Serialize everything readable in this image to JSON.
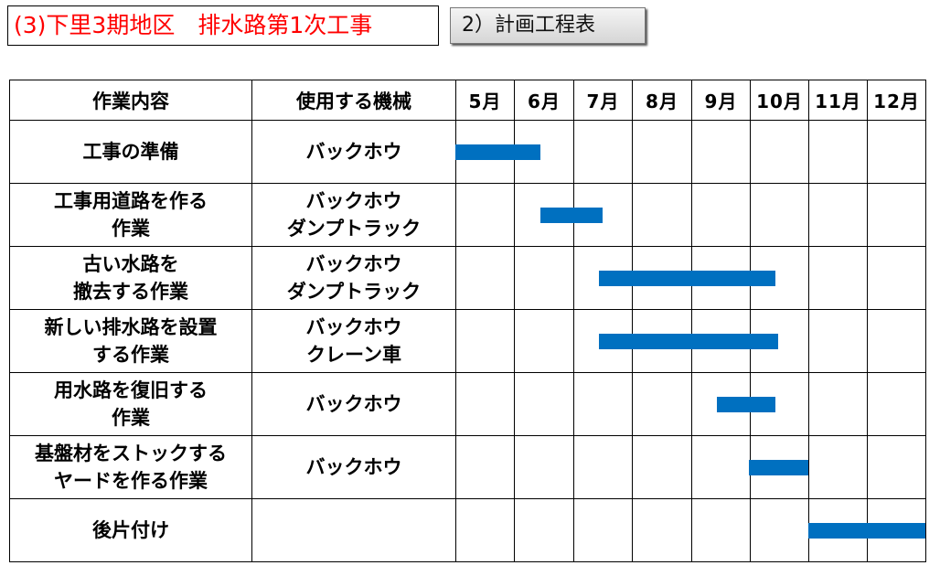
{
  "header": {
    "title": "(3)下里3期地区　排水路第1次工事",
    "section_label": "2）計画工程表"
  },
  "table": {
    "col_work": "作業内容",
    "col_machine": "使用する機械",
    "months": [
      "5月",
      "6月",
      "7月",
      "8月",
      "9月",
      "10月",
      "11月",
      "12月"
    ]
  },
  "rows": [
    {
      "work": [
        "工事の準備"
      ],
      "machines": [
        "バックホウ"
      ],
      "start": 5.0,
      "end": 6.45
    },
    {
      "work": [
        "工事用道路を作る",
        "作業"
      ],
      "machines": [
        "バックホウ",
        "ダンプトラック"
      ],
      "start": 6.45,
      "end": 7.5
    },
    {
      "work": [
        "古い水路を",
        "撤去する作業"
      ],
      "machines": [
        "バックホウ",
        "ダンプトラック"
      ],
      "start": 7.45,
      "end": 10.45
    },
    {
      "work": [
        "新しい排水路を設置",
        "する作業"
      ],
      "machines": [
        "バックホウ",
        "クレーン車"
      ],
      "start": 7.45,
      "end": 10.5
    },
    {
      "work": [
        "用水路を復旧する",
        "作業"
      ],
      "machines": [
        "バックホウ"
      ],
      "start": 9.45,
      "end": 10.45
    },
    {
      "work": [
        "基盤材をストックする",
        "ヤードを作る作業"
      ],
      "machines": [
        "バックホウ"
      ],
      "start": 10.0,
      "end": 11.0
    },
    {
      "work": [
        "後片付け"
      ],
      "machines": [],
      "start": 11.0,
      "end": 13.0
    }
  ],
  "colors": {
    "title_red": "#ff0000",
    "bar_blue": "#0070c0"
  }
}
